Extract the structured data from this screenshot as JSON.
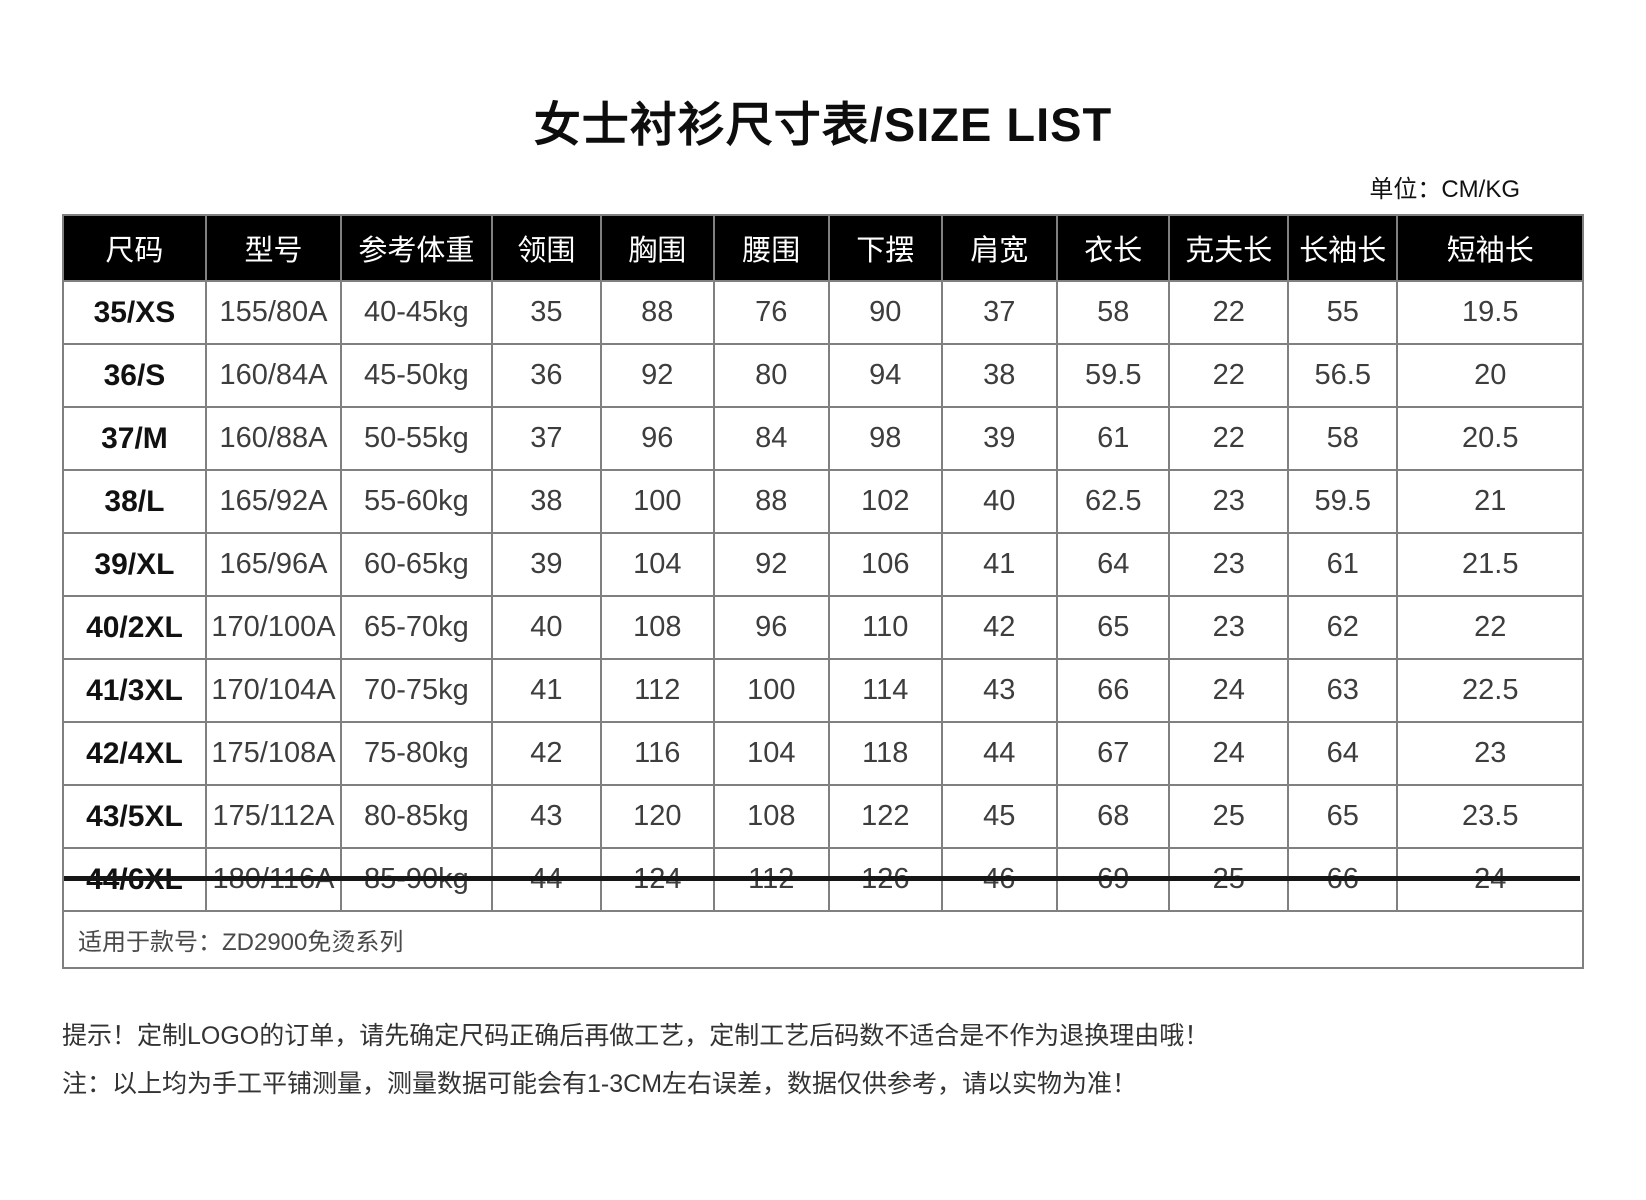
{
  "page": {
    "title": "女士衬衫尺寸表/SIZE LIST",
    "unit_label": "单位：CM/KG"
  },
  "table": {
    "headers": [
      "尺码",
      "型号",
      "参考体重",
      "领围",
      "胸围",
      "腰围",
      "下摆",
      "肩宽",
      "衣长",
      "克夫长",
      "长袖长",
      "短袖长"
    ],
    "rows": [
      {
        "struck": false,
        "cells": [
          "35/XS",
          "155/80A",
          "40-45kg",
          "35",
          "88",
          "76",
          "90",
          "37",
          "58",
          "22",
          "55",
          "19.5"
        ]
      },
      {
        "struck": false,
        "cells": [
          "36/S",
          "160/84A",
          "45-50kg",
          "36",
          "92",
          "80",
          "94",
          "38",
          "59.5",
          "22",
          "56.5",
          "20"
        ]
      },
      {
        "struck": false,
        "cells": [
          "37/M",
          "160/88A",
          "50-55kg",
          "37",
          "96",
          "84",
          "98",
          "39",
          "61",
          "22",
          "58",
          "20.5"
        ]
      },
      {
        "struck": false,
        "cells": [
          "38/L",
          "165/92A",
          "55-60kg",
          "38",
          "100",
          "88",
          "102",
          "40",
          "62.5",
          "23",
          "59.5",
          "21"
        ]
      },
      {
        "struck": false,
        "cells": [
          "39/XL",
          "165/96A",
          "60-65kg",
          "39",
          "104",
          "92",
          "106",
          "41",
          "64",
          "23",
          "61",
          "21.5"
        ]
      },
      {
        "struck": false,
        "cells": [
          "40/2XL",
          "170/100A",
          "65-70kg",
          "40",
          "108",
          "96",
          "110",
          "42",
          "65",
          "23",
          "62",
          "22"
        ]
      },
      {
        "struck": false,
        "cells": [
          "41/3XL",
          "170/104A",
          "70-75kg",
          "41",
          "112",
          "100",
          "114",
          "43",
          "66",
          "24",
          "63",
          "22.5"
        ]
      },
      {
        "struck": false,
        "cells": [
          "42/4XL",
          "175/108A",
          "75-80kg",
          "42",
          "116",
          "104",
          "118",
          "44",
          "67",
          "24",
          "64",
          "23"
        ]
      },
      {
        "struck": false,
        "cells": [
          "43/5XL",
          "175/112A",
          "80-85kg",
          "43",
          "120",
          "108",
          "122",
          "45",
          "68",
          "25",
          "65",
          "23.5"
        ]
      },
      {
        "struck": true,
        "cells": [
          "44/6XL",
          "180/116A",
          "85-90kg",
          "44",
          "124",
          "112",
          "126",
          "46",
          "69",
          "25",
          "66",
          "24"
        ]
      }
    ],
    "footnote": "适用于款号：ZD2900免烫系列"
  },
  "notes": [
    "提示！定制LOGO的订单，请先确定尺码正确后再做工艺，定制工艺后码数不适合是不作为退换理由哦！",
    "注：以上均为手工平铺测量，测量数据可能会有1-3CM左右误差，数据仅供参考，请以实物为准！"
  ],
  "colors": {
    "header_bg": "#000000",
    "header_text": "#ffffff",
    "grid_line": "#808080",
    "strike_line": "#161616",
    "background": "#ffffff"
  }
}
